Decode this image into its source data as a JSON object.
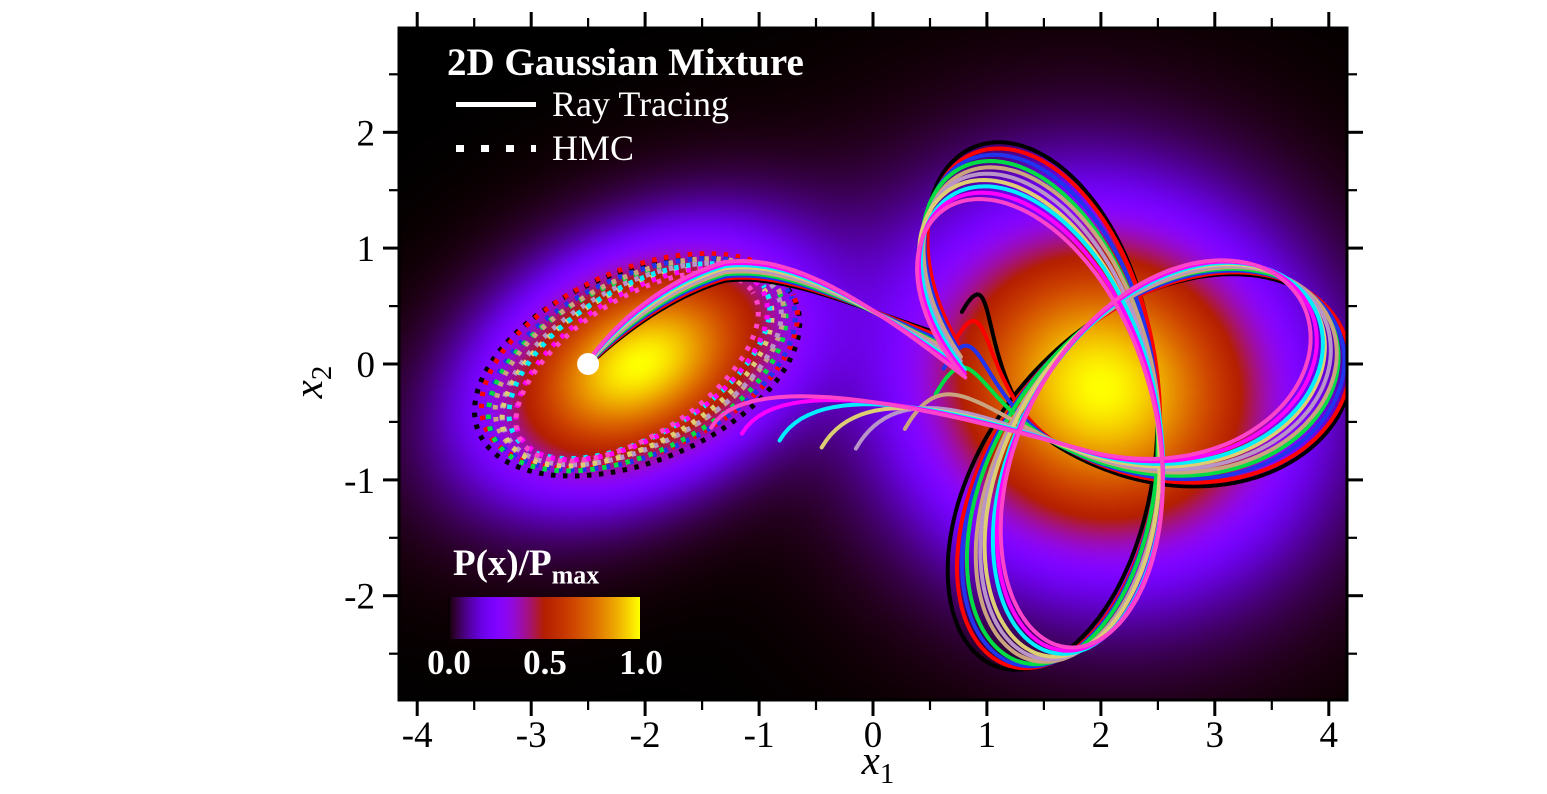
{
  "figure": {
    "title": "2D Gaussian Mixture",
    "legend": {
      "ray_tracing": "Ray Tracing",
      "hmc": "HMC"
    },
    "colorbar": {
      "label": "P(x)/P",
      "label_sub": "max",
      "tick_labels": [
        "0.0",
        "0.5",
        "1.0"
      ]
    },
    "axes": {
      "xlabel_base": "x",
      "xlabel_sub": "1",
      "ylabel_base": "x",
      "ylabel_sub": "2",
      "x_major_ticks": [
        -4,
        -3,
        -2,
        -1,
        0,
        1,
        2,
        3,
        4
      ],
      "y_major_ticks": [
        -2,
        -1,
        0,
        1,
        2
      ],
      "minor_step": 0.5,
      "xlim": [
        -4.16,
        4.16
      ],
      "ylim": [
        -2.9,
        2.9
      ]
    }
  },
  "chart_data": {
    "type": "heatmap",
    "title": "2D Gaussian Mixture",
    "xlabel": "x_1",
    "ylabel": "x_2",
    "xlim": [
      -4.16,
      4.16
    ],
    "ylim": [
      -2.9,
      2.9
    ],
    "grid": false,
    "colormap": "gnuplot",
    "colorbar": {
      "label": "P(x)/P_max",
      "min": 0.0,
      "max": 1.0,
      "ticks": [
        0.0,
        0.5,
        1.0
      ]
    },
    "gaussian_mixture": [
      {
        "center": [
          -2.05,
          0.0
        ],
        "sigma": [
          0.9,
          0.58
        ],
        "angle_deg": 27,
        "weight": 1.0
      },
      {
        "center": [
          2.0,
          -0.2
        ],
        "sigma": [
          1.05,
          0.95
        ],
        "angle_deg": -20,
        "weight": 1.0
      }
    ],
    "start_point": [
      -2.5,
      0.0
    ],
    "trajectory_colors": [
      "#000000",
      "#ff0000",
      "#2233ee",
      "#00dd44",
      "#c9a47e",
      "#b894c8",
      "#ddce74",
      "#00eeff",
      "#ff00ff",
      "#ff44cc"
    ],
    "series": [
      {
        "name": "Ray Tracing",
        "style": "solid",
        "description": "solid multicolored trajectories looping in three petals around the right gaussian, launched from the white start point"
      },
      {
        "name": "HMC",
        "style": "dotted",
        "description": "dotted multicolored elliptical sample rings around the left gaussian"
      }
    ],
    "ray_tracing_geometry": {
      "center": [
        2.0,
        -0.25
      ],
      "a": 0.85,
      "b": 1.35,
      "phi_deg": -36,
      "stretch_y": 1.15,
      "scale_step": 0.014,
      "entry_target": [
        0.8,
        0.15
      ],
      "tail_ends": [
        [
          0.78,
          0.45
        ],
        [
          0.72,
          0.2
        ],
        [
          0.62,
          -0.04
        ],
        [
          0.55,
          -0.26
        ],
        [
          0.28,
          -0.56
        ],
        [
          -0.15,
          -0.73
        ],
        [
          -0.45,
          -0.72
        ],
        [
          -0.82,
          -0.66
        ],
        [
          -1.15,
          -0.6
        ],
        [
          -1.42,
          -0.55
        ]
      ]
    },
    "hmc_geometry": {
      "center": [
        -2.05,
        0.0
      ],
      "a_max": 1.5,
      "a_step": 0.033,
      "b_max": 0.82,
      "b_step": 0.026,
      "angle_deg": 27
    }
  }
}
